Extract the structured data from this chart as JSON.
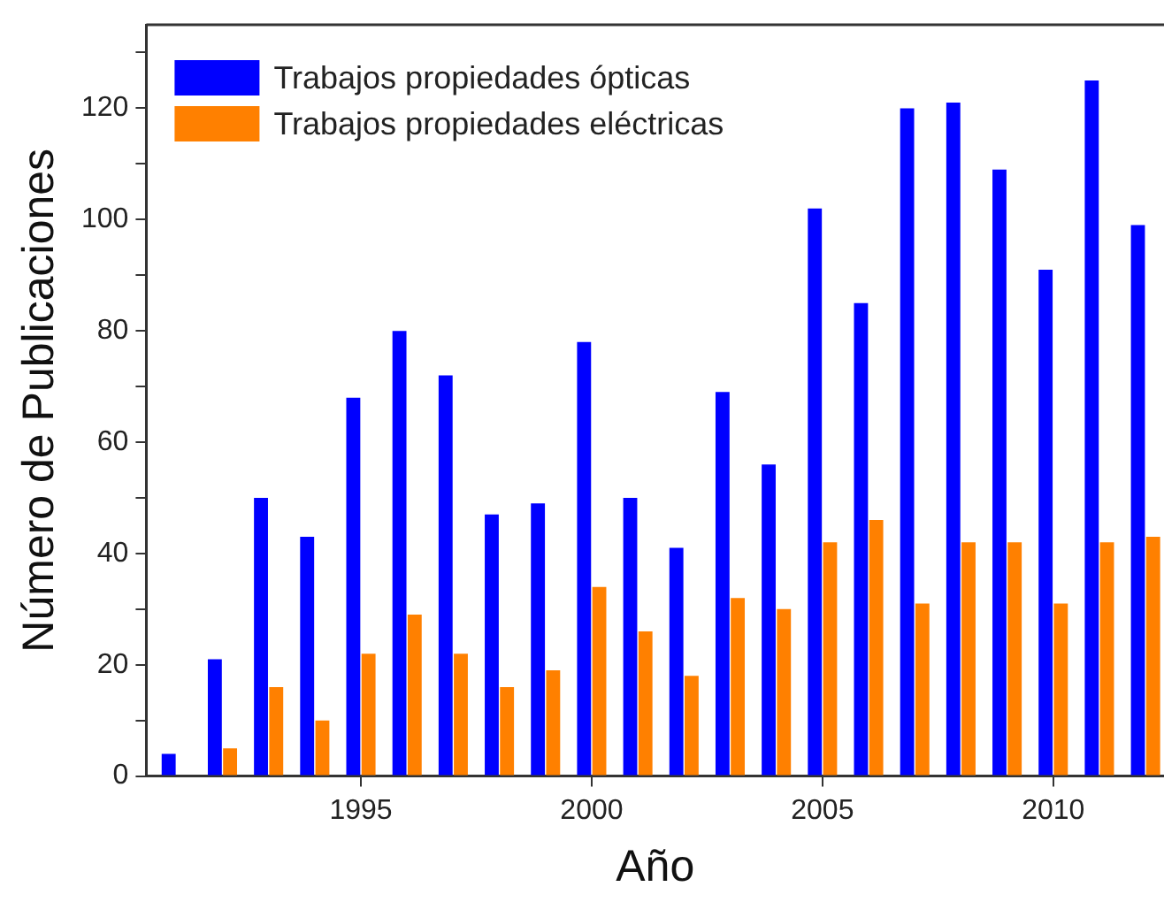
{
  "chart_data": {
    "type": "bar",
    "xlabel": "Año",
    "ylabel": "Número de Publicaciones",
    "x": [
      1991,
      1992,
      1993,
      1994,
      1995,
      1996,
      1997,
      1998,
      1999,
      2000,
      2001,
      2002,
      2003,
      2004,
      2005,
      2006,
      2007,
      2008,
      2009,
      2010,
      2011,
      2012
    ],
    "series": [
      {
        "name": "Trabajos propiedades ópticas",
        "color": "#0000ff",
        "values": [
          4,
          21,
          50,
          43,
          68,
          80,
          72,
          47,
          49,
          78,
          50,
          41,
          69,
          56,
          102,
          85,
          120,
          121,
          109,
          91,
          125,
          99
        ]
      },
      {
        "name": "Trabajos propiedades eléctricas",
        "color": "#ff8000",
        "values": [
          0,
          5,
          16,
          10,
          22,
          29,
          22,
          16,
          19,
          34,
          26,
          18,
          32,
          30,
          42,
          46,
          31,
          42,
          42,
          31,
          42,
          43
        ]
      }
    ],
    "xlim": [
      1990.35,
      2012.4
    ],
    "xticks": [
      1995,
      2000,
      2005,
      2010
    ],
    "ylim": [
      0,
      135
    ],
    "yticks": [
      0,
      {
        "value": 10,
        "label": null
      },
      20,
      {
        "value": 30,
        "label": null
      },
      40,
      {
        "value": 50,
        "label": null
      },
      60,
      {
        "value": 70,
        "label": null
      },
      80,
      {
        "value": 90,
        "label": null
      },
      100,
      {
        "value": 110,
        "label": null
      },
      120,
      {
        "value": 130,
        "label": null
      }
    ],
    "grid": false,
    "legend": "top left"
  }
}
